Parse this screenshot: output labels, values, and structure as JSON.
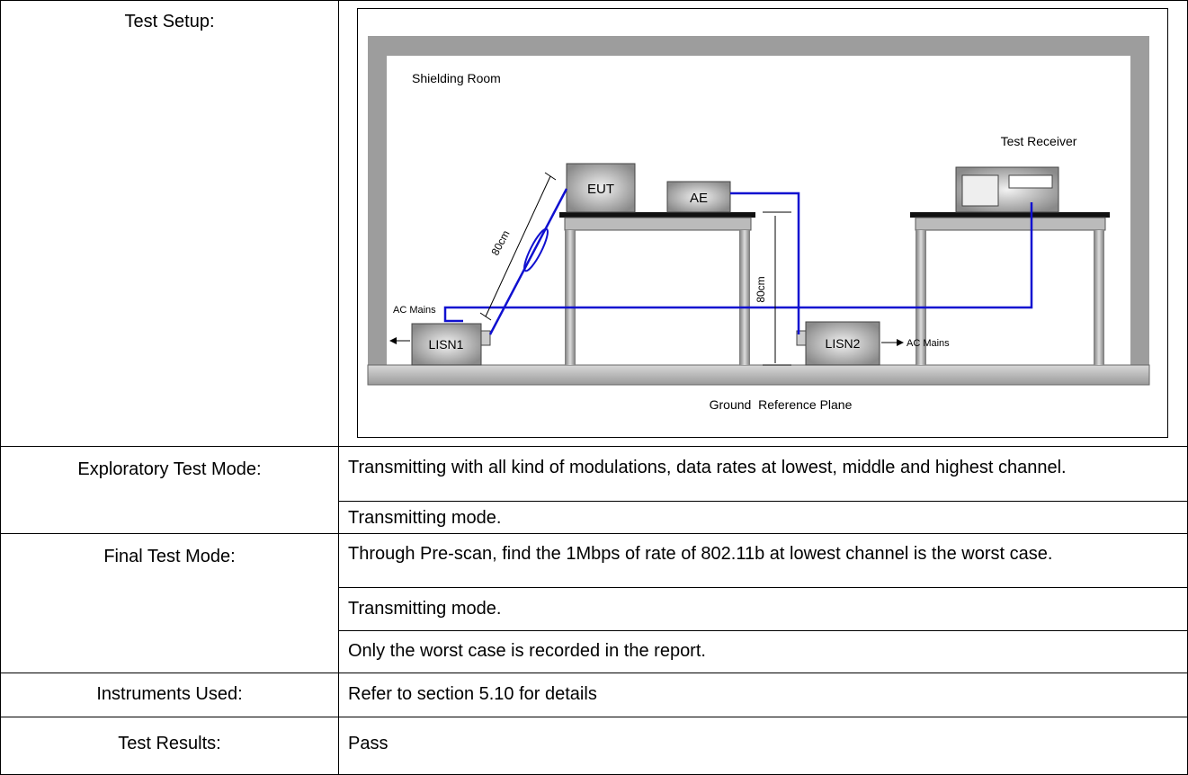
{
  "rows": [
    {
      "label": "Test Setup:",
      "diagram": {
        "room": "Shielding Room",
        "receiver": "Test Receiver",
        "eut": "EUT",
        "ae": "AE",
        "cable_length": "80cm",
        "table_height": "80cm",
        "lisn1": "LISN1",
        "lisn2": "LISN2",
        "mains_left": "AC Mains",
        "mains_right": "AC Mains",
        "ground": "Ground  Reference Plane"
      }
    },
    {
      "label": "Exploratory Test Mode:",
      "lines": [
        "Transmitting with all kind of modulations, data rates at lowest, middle and highest channel.",
        "Transmitting mode."
      ]
    },
    {
      "label": "Final Test Mode:",
      "lines": [
        "Through Pre-scan, find the 1Mbps of rate of 802.11b at lowest channel is the worst case.",
        "Transmitting mode.",
        "Only the worst case is recorded in the report."
      ]
    },
    {
      "label": "Instruments Used:",
      "lines": [
        "Refer to section 5.10 for details"
      ]
    },
    {
      "label": "Test Results:",
      "lines": [
        "Pass"
      ]
    }
  ]
}
